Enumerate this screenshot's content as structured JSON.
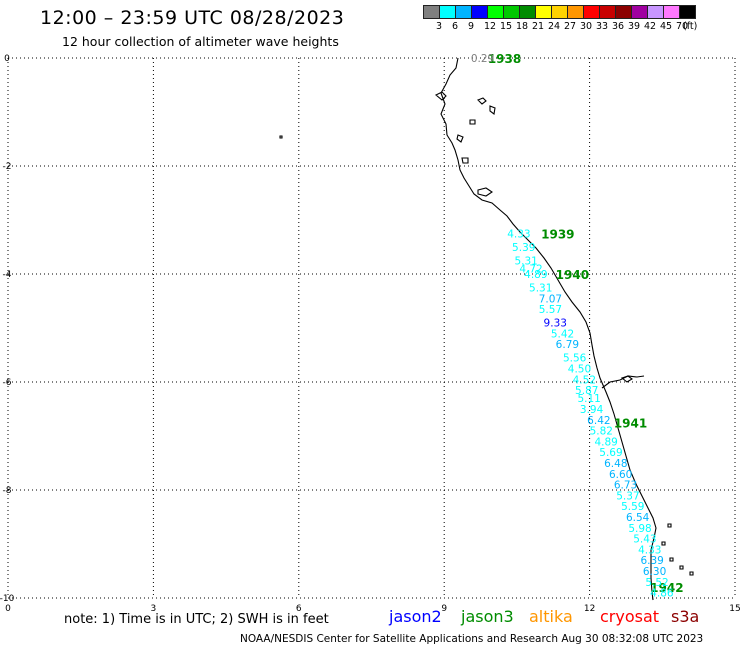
{
  "header": {
    "title": "12:00 – 23:59 UTC 08/28/2023",
    "subtitle": "12 hour collection of altimeter wave heights"
  },
  "colorbar": {
    "colors": [
      "#808080",
      "#00ffff",
      "#00b4ff",
      "#0000ff",
      "#00ff00",
      "#00c800",
      "#008c00",
      "#ffff00",
      "#ffd200",
      "#ff9600",
      "#ff0000",
      "#c80000",
      "#8c0000",
      "#a000a0",
      "#c896ff",
      "#ff78ff",
      "#000000"
    ],
    "labels": [
      "3",
      "6",
      "9",
      "12",
      "15",
      "18",
      "21",
      "24",
      "27",
      "30",
      "33",
      "36",
      "39",
      "42",
      "45",
      "70",
      "(ft)"
    ]
  },
  "axes": {
    "x_ticks": [
      "0",
      "3",
      "6",
      "9",
      "12",
      "15"
    ],
    "y_ticks": [
      "0",
      "-2",
      "-4",
      "-6",
      "-8",
      "-10"
    ]
  },
  "chart_data": {
    "type": "scatter",
    "x_range": [
      0,
      15
    ],
    "y_range": [
      -10,
      0
    ],
    "grid": true,
    "time_labels": [
      {
        "text": "1938",
        "x": 9.9,
        "y": 0.0
      },
      {
        "text": "1939",
        "x": 11.0,
        "y": -3.25
      },
      {
        "text": "1940",
        "x": 11.3,
        "y": -4.0
      },
      {
        "text": "1941",
        "x": 12.5,
        "y": -6.75
      },
      {
        "text": "1942",
        "x": 13.25,
        "y": -9.8
      }
    ],
    "points": [
      {
        "text": "0.29",
        "x": 9.55,
        "y": 0.0,
        "color": "#808080"
      },
      {
        "text": "4.33",
        "x": 10.3,
        "y": -3.25,
        "color": "#00ffff"
      },
      {
        "text": "5.39",
        "x": 10.4,
        "y": -3.5,
        "color": "#00ffff"
      },
      {
        "text": "5.31",
        "x": 10.45,
        "y": -3.75,
        "color": "#00ffff"
      },
      {
        "text": "4.72",
        "x": 10.55,
        "y": -3.9,
        "color": "#00ffff"
      },
      {
        "text": "4.89",
        "x": 10.65,
        "y": -4.0,
        "color": "#00ffff"
      },
      {
        "text": "5.31",
        "x": 10.75,
        "y": -4.25,
        "color": "#00ffff"
      },
      {
        "text": "7.07",
        "x": 10.95,
        "y": -4.45,
        "color": "#00b4ff"
      },
      {
        "text": "5.57",
        "x": 10.95,
        "y": -4.65,
        "color": "#00ffff"
      },
      {
        "text": "9.33",
        "x": 11.05,
        "y": -4.9,
        "color": "#0000ff"
      },
      {
        "text": "5.42",
        "x": 11.2,
        "y": -5.1,
        "color": "#00ffff"
      },
      {
        "text": "6.79",
        "x": 11.3,
        "y": -5.3,
        "color": "#00b4ff"
      },
      {
        "text": "5.56",
        "x": 11.45,
        "y": -5.55,
        "color": "#00ffff"
      },
      {
        "text": "4.50",
        "x": 11.55,
        "y": -5.75,
        "color": "#00ffff"
      },
      {
        "text": "4.52",
        "x": 11.65,
        "y": -5.95,
        "color": "#00ffff"
      },
      {
        "text": "5.87",
        "x": 11.7,
        "y": -6.15,
        "color": "#00ffff"
      },
      {
        "text": "5.11",
        "x": 11.75,
        "y": -6.3,
        "color": "#00ffff"
      },
      {
        "text": "3.94",
        "x": 11.8,
        "y": -6.5,
        "color": "#00ffff"
      },
      {
        "text": "6.42",
        "x": 11.95,
        "y": -6.7,
        "color": "#00b4ff"
      },
      {
        "text": "5.82",
        "x": 12.0,
        "y": -6.9,
        "color": "#00ffff"
      },
      {
        "text": "4.89",
        "x": 12.1,
        "y": -7.1,
        "color": "#00ffff"
      },
      {
        "text": "5.69",
        "x": 12.2,
        "y": -7.3,
        "color": "#00ffff"
      },
      {
        "text": "6.48",
        "x": 12.3,
        "y": -7.5,
        "color": "#00b4ff"
      },
      {
        "text": "6.60",
        "x": 12.4,
        "y": -7.7,
        "color": "#00b4ff"
      },
      {
        "text": "6.73",
        "x": 12.5,
        "y": -7.9,
        "color": "#00b4ff"
      },
      {
        "text": "5.37",
        "x": 12.55,
        "y": -8.1,
        "color": "#00ffff"
      },
      {
        "text": "5.59",
        "x": 12.65,
        "y": -8.3,
        "color": "#00ffff"
      },
      {
        "text": "6.54",
        "x": 12.75,
        "y": -8.5,
        "color": "#00b4ff"
      },
      {
        "text": "5.98",
        "x": 12.8,
        "y": -8.7,
        "color": "#00ffff"
      },
      {
        "text": "5.43",
        "x": 12.9,
        "y": -8.9,
        "color": "#00ffff"
      },
      {
        "text": "4.33",
        "x": 13.0,
        "y": -9.1,
        "color": "#00ffff"
      },
      {
        "text": "6.39",
        "x": 13.05,
        "y": -9.3,
        "color": "#00b4ff"
      },
      {
        "text": "6.30",
        "x": 13.1,
        "y": -9.5,
        "color": "#00b4ff"
      },
      {
        "text": "5.52",
        "x": 13.15,
        "y": -9.7,
        "color": "#00ffff"
      },
      {
        "text": "4.86",
        "x": 13.25,
        "y": -9.9,
        "color": "#00ffff"
      }
    ]
  },
  "footer": {
    "note": "note:  1) Time is in UTC; 2) SWH is in feet",
    "satellites": [
      {
        "name": "jason2",
        "color": "#0000ff"
      },
      {
        "name": "jason3",
        "color": "#008c00"
      },
      {
        "name": "altika",
        "color": "#ff9600"
      },
      {
        "name": "cryosat",
        "color": "#ff0000"
      },
      {
        "name": "s3a",
        "color": "#8c0000"
      }
    ],
    "credit": "NOAA/NESDIS Center for Satellite Applications and Research     Aug 30 08:32:08 UTC 2023"
  }
}
